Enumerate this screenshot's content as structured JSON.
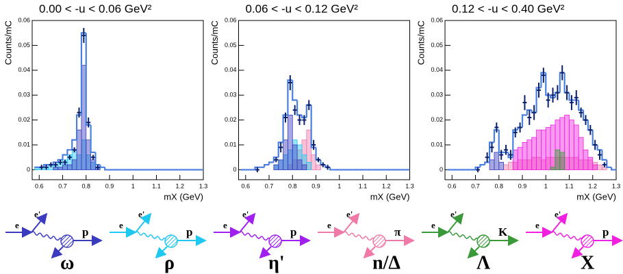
{
  "chart_data": [
    {
      "type": "histogram",
      "title": "0.00 < -u < 0.06 GeV²",
      "xlabel": "mX (GeV)",
      "ylabel": "Counts/mC",
      "xlim": [
        0.57,
        1.3
      ],
      "xticks": [
        0.6,
        0.7,
        0.8,
        0.9,
        1,
        1.1,
        1.2,
        1.3
      ],
      "ylim": [
        -0.004,
        0.06
      ],
      "yticks": [
        0,
        0.01,
        0.02,
        0.03,
        0.04,
        0.05,
        0.06
      ],
      "bins": [
        0.58,
        0.6,
        0.62,
        0.64,
        0.66,
        0.68,
        0.7,
        0.72,
        0.74,
        0.76,
        0.78,
        0.8,
        0.82,
        0.84,
        0.86,
        0.88,
        0.9,
        0.92,
        0.94,
        0.96,
        0.98,
        1,
        1.02,
        1.04,
        1.06,
        1.08,
        1.1,
        1.12,
        1.14,
        1.16,
        1.18,
        1.2,
        1.22,
        1.24,
        1.26,
        1.28,
        1.3
      ],
      "series": [
        {
          "color": "#1ec8f0",
          "values": [
            0.001,
            0.001,
            0.001,
            0.002,
            0.002,
            0.003,
            0.004,
            0.006,
            0.008,
            0.006,
            0.012,
            0.006,
            0.003,
            0.001,
            0,
            0,
            0,
            0,
            0,
            0,
            0,
            0,
            0,
            0,
            0,
            0,
            0,
            0,
            0,
            0,
            0,
            0,
            0,
            0,
            0,
            0
          ]
        },
        {
          "color": "#3b3bbf",
          "values": [
            0,
            0,
            0,
            0,
            0.001,
            0.001,
            0.002,
            0.002,
            0.004,
            0.016,
            0.042,
            0.012,
            0.004,
            0.001,
            0,
            0,
            0,
            0,
            0,
            0,
            0,
            0,
            0,
            0,
            0,
            0,
            0,
            0,
            0,
            0,
            0,
            0,
            0,
            0,
            0,
            0
          ]
        }
      ],
      "total": {
        "color": "#4a7fe0",
        "values": [
          0.001,
          0.001,
          0.002,
          0.002,
          0.003,
          0.004,
          0.006,
          0.008,
          0.012,
          0.022,
          0.055,
          0.018,
          0.007,
          0.002,
          0.001,
          0,
          0,
          0,
          0,
          0,
          0,
          0,
          0,
          0,
          0,
          0,
          0,
          0,
          0,
          0,
          0,
          0,
          0,
          0,
          0,
          0
        ]
      },
      "data": {
        "color": "#0a1f6e",
        "x": [
          0.61,
          0.63,
          0.65,
          0.67,
          0.69,
          0.71,
          0.73,
          0.75,
          0.77,
          0.79,
          0.81,
          0.83,
          0.85
        ],
        "values": [
          0.001,
          0.001,
          0.002,
          0.002,
          0.003,
          0.003,
          0.005,
          0.008,
          0.023,
          0.054,
          0.019,
          0.005,
          0.001
        ],
        "errors": [
          0.001,
          0.001,
          0.001,
          0.001,
          0.001,
          0.001,
          0.001,
          0.001,
          0.002,
          0.003,
          0.002,
          0.001,
          0.001
        ]
      }
    },
    {
      "type": "histogram",
      "title": "0.06 < -u < 0.12 GeV²",
      "xlabel": "mX (GeV)",
      "ylabel": "Counts/mC",
      "xlim": [
        0.57,
        1.3
      ],
      "xticks": [
        0.6,
        0.7,
        0.8,
        0.9,
        1,
        1.1,
        1.2,
        1.3
      ],
      "ylim": [
        -0.004,
        0.06
      ],
      "yticks": [
        0,
        0.01,
        0.02,
        0.03,
        0.04,
        0.05,
        0.06
      ],
      "bins": [
        0.58,
        0.6,
        0.62,
        0.64,
        0.66,
        0.68,
        0.7,
        0.72,
        0.74,
        0.76,
        0.78,
        0.8,
        0.82,
        0.84,
        0.86,
        0.88,
        0.9,
        0.92,
        0.94,
        0.96,
        0.98,
        1,
        1.02,
        1.04,
        1.06,
        1.08,
        1.1,
        1.12,
        1.14,
        1.16,
        1.18,
        1.2,
        1.22,
        1.24,
        1.26,
        1.28,
        1.3
      ],
      "series": [
        {
          "color": "#ef7aa8",
          "values": [
            0,
            0,
            0,
            0,
            0,
            0,
            0,
            0,
            0,
            0,
            0.002,
            0.004,
            0.008,
            0.012,
            0.016,
            0.006,
            0.002,
            0,
            0,
            0,
            0,
            0,
            0,
            0,
            0,
            0,
            0,
            0,
            0,
            0,
            0,
            0,
            0,
            0,
            0,
            0
          ]
        },
        {
          "color": "#1ec8f0",
          "values": [
            0,
            0,
            0,
            0,
            0,
            0,
            0,
            0.002,
            0.004,
            0.006,
            0.008,
            0.012,
            0.01,
            0.006,
            0.003,
            0,
            0,
            0,
            0,
            0,
            0,
            0,
            0,
            0,
            0,
            0,
            0,
            0,
            0,
            0,
            0,
            0,
            0,
            0,
            0,
            0
          ]
        },
        {
          "color": "#3b3bbf",
          "values": [
            0,
            0,
            0,
            0,
            0,
            0,
            0,
            0.002,
            0.004,
            0.012,
            0.022,
            0.01,
            0.004,
            0.002,
            0,
            0,
            0,
            0,
            0,
            0,
            0,
            0,
            0,
            0,
            0,
            0,
            0,
            0,
            0,
            0,
            0,
            0,
            0,
            0,
            0,
            0
          ]
        }
      ],
      "total": {
        "color": "#4a7fe0",
        "values": [
          0,
          0,
          0,
          0.001,
          0.001,
          0.002,
          0.003,
          0.005,
          0.011,
          0.022,
          0.036,
          0.028,
          0.022,
          0.021,
          0.026,
          0.009,
          0.004,
          0.002,
          0.001,
          0,
          0,
          0,
          0,
          0,
          0,
          0,
          0,
          0,
          0,
          0,
          0,
          0,
          0,
          0,
          0,
          0
        ]
      },
      "data": {
        "color": "#0a1f6e",
        "x": [
          0.65,
          0.73,
          0.75,
          0.77,
          0.79,
          0.81,
          0.83,
          0.85,
          0.87,
          0.89,
          0.91,
          0.93,
          0.95
        ],
        "values": [
          0,
          0.004,
          0.009,
          0.021,
          0.035,
          0.024,
          0.02,
          0.02,
          0.026,
          0.01,
          0.004,
          0.002,
          0.001
        ],
        "errors": [
          0.001,
          0.001,
          0.002,
          0.002,
          0.003,
          0.002,
          0.002,
          0.002,
          0.002,
          0.002,
          0.001,
          0.001,
          0.001
        ]
      }
    },
    {
      "type": "histogram",
      "title": "0.12 < -u < 0.40 GeV²",
      "xlabel": "mX (GeV)",
      "ylabel": "Counts/mC",
      "xlim": [
        0.57,
        1.3
      ],
      "xticks": [
        0.6,
        0.7,
        0.8,
        0.9,
        1,
        1.1,
        1.2,
        1.3
      ],
      "ylim": [
        -0.004,
        0.06
      ],
      "yticks": [
        0,
        0.01,
        0.02,
        0.03,
        0.04,
        0.05,
        0.06
      ],
      "bins": [
        0.58,
        0.6,
        0.62,
        0.64,
        0.66,
        0.68,
        0.7,
        0.72,
        0.74,
        0.76,
        0.78,
        0.8,
        0.82,
        0.84,
        0.86,
        0.88,
        0.9,
        0.92,
        0.94,
        0.96,
        0.98,
        1,
        1.02,
        1.04,
        1.06,
        1.08,
        1.1,
        1.12,
        1.14,
        1.16,
        1.18,
        1.2,
        1.22,
        1.24,
        1.26,
        1.28,
        1.3
      ],
      "series": [
        {
          "color": "#ef7aa8",
          "values": [
            0,
            0,
            0,
            0,
            0,
            0,
            0,
            0,
            0,
            0,
            0,
            0,
            0.002,
            0.003,
            0.003,
            0.004,
            0.004,
            0.004,
            0.005,
            0.005,
            0.004,
            0.005,
            0.005,
            0.005,
            0.005,
            0.005,
            0.005,
            0.005,
            0.004,
            0.004,
            0.004,
            0.003,
            0.002,
            0.001,
            0,
            0
          ]
        },
        {
          "color": "#f020e0",
          "values": [
            0,
            0,
            0,
            0,
            0,
            0,
            0,
            0,
            0,
            0,
            0,
            0,
            0,
            0,
            0.008,
            0.009,
            0.011,
            0.012,
            0.013,
            0.016,
            0.016,
            0.017,
            0.018,
            0.02,
            0.021,
            0.022,
            0.02,
            0.018,
            0.013,
            0.008,
            0.005,
            0.002,
            0,
            0,
            0,
            0
          ]
        },
        {
          "color": "#3a9a3a",
          "values": [
            0,
            0,
            0,
            0,
            0,
            0,
            0,
            0,
            0,
            0,
            0,
            0,
            0,
            0,
            0,
            0,
            0,
            0,
            0,
            0,
            0,
            0,
            0.001,
            0.008,
            0.007,
            0,
            0,
            0,
            0,
            0,
            0,
            0,
            0,
            0,
            0,
            0
          ]
        },
        {
          "color": "#3b3bbf",
          "values": [
            0,
            0,
            0,
            0,
            0,
            0,
            0,
            0,
            0,
            0.004,
            0.007,
            0.003,
            0,
            0,
            0,
            0,
            0,
            0,
            0,
            0,
            0,
            0,
            0,
            0,
            0,
            0,
            0,
            0,
            0,
            0,
            0,
            0,
            0,
            0,
            0,
            0
          ]
        }
      ],
      "total": {
        "color": "#4a7fe0",
        "values": [
          0,
          0,
          0,
          0,
          0,
          0,
          0.001,
          0.002,
          0.003,
          0.011,
          0.016,
          0.007,
          0.007,
          0.005,
          0.016,
          0.017,
          0.022,
          0.024,
          0.023,
          0.033,
          0.039,
          0.03,
          0.029,
          0.031,
          0.039,
          0.031,
          0.028,
          0.028,
          0.024,
          0.02,
          0.016,
          0.01,
          0.008,
          0.004,
          0.001,
          0
        ]
      },
      "data": {
        "color": "#0a1f6e",
        "x": [
          0.71,
          0.75,
          0.77,
          0.79,
          0.81,
          0.83,
          0.85,
          0.87,
          0.89,
          0.91,
          0.93,
          0.95,
          0.97,
          0.99,
          1.01,
          1.03,
          1.05,
          1.07,
          1.09,
          1.11,
          1.13,
          1.15,
          1.17,
          1.19,
          1.21,
          1.23,
          1.25
        ],
        "values": [
          0,
          0.005,
          0.009,
          0.017,
          0.006,
          0.008,
          0.006,
          0.015,
          0.017,
          0.027,
          0.021,
          0.023,
          0.032,
          0.038,
          0.028,
          0.03,
          0.031,
          0.039,
          0.031,
          0.027,
          0.029,
          0.023,
          0.02,
          0.016,
          0.01,
          0.006,
          0.002
        ],
        "errors": [
          0.001,
          0.002,
          0.002,
          0.002,
          0.002,
          0.002,
          0.002,
          0.002,
          0.002,
          0.003,
          0.003,
          0.003,
          0.003,
          0.003,
          0.003,
          0.003,
          0.003,
          0.003,
          0.003,
          0.003,
          0.003,
          0.002,
          0.002,
          0.002,
          0.002,
          0.002,
          0.001
        ]
      }
    }
  ],
  "diagrams": [
    {
      "color": "#3b3bbf",
      "labels": [
        "e",
        "e'",
        "p",
        "ω"
      ]
    },
    {
      "color": "#1ec8f0",
      "labels": [
        "e",
        "e'",
        "p",
        "ρ"
      ]
    },
    {
      "color": "#a020f0",
      "labels": [
        "e",
        "e'",
        "p",
        "η'"
      ]
    },
    {
      "color": "#ef7aa8",
      "labels": [
        "e",
        "e'",
        "π",
        "n/Δ"
      ]
    },
    {
      "color": "#3a9a3a",
      "labels": [
        "e",
        "e'",
        "K",
        "Λ"
      ]
    },
    {
      "color": "#f020e0",
      "labels": [
        "e",
        "e'",
        "p",
        "X"
      ]
    }
  ]
}
